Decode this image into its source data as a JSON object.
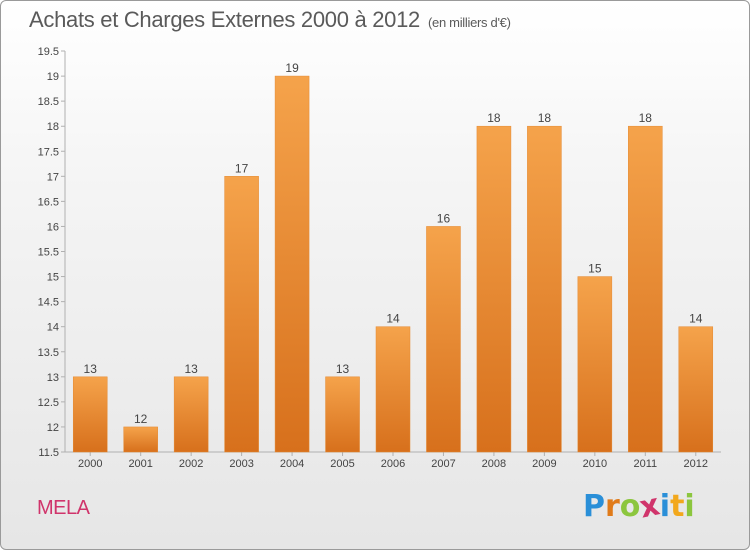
{
  "header": {
    "title": "Achats et Charges Externes 2000 à 2012",
    "unit": "(en milliers d'€)"
  },
  "footer": {
    "commune": "MELA",
    "brand": "Proxiti",
    "brand_letters": [
      "P",
      "r",
      "o",
      "x",
      "i",
      "t",
      "i"
    ],
    "brand_colors": [
      "#2a8fd8",
      "#e07b1a",
      "#8cc63e",
      "#d0346b",
      "#2a8fd8",
      "#f2a81d",
      "#8cc63e"
    ]
  },
  "chart_data": {
    "type": "bar",
    "categories": [
      "2000",
      "2001",
      "2002",
      "2003",
      "2004",
      "2005",
      "2006",
      "2007",
      "2008",
      "2009",
      "2010",
      "2011",
      "2012"
    ],
    "values": [
      13,
      12,
      13,
      17,
      19,
      13,
      14,
      16,
      18,
      18,
      15,
      18,
      14
    ],
    "ylim": [
      11.5,
      19.5
    ],
    "yticks": [
      "11.5",
      "12",
      "12.5",
      "13",
      "13.5",
      "14",
      "14.5",
      "15",
      "15.5",
      "16",
      "16.5",
      "17",
      "17.5",
      "18",
      "18.5",
      "19",
      "19.5"
    ],
    "grid": false,
    "bar_color_top": "#f5a34b",
    "bar_color_bottom": "#d7701c",
    "axis_color": "#b0b0b0"
  }
}
